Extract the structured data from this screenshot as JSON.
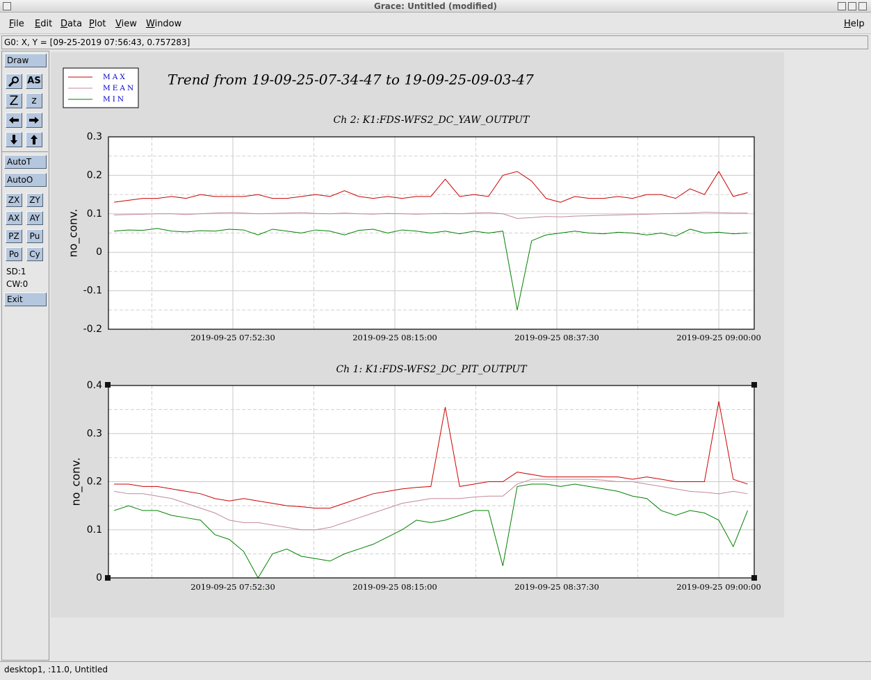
{
  "window": {
    "title": "Grace: Untitled (modified)"
  },
  "menu": [
    "File",
    "Edit",
    "Data",
    "Plot",
    "View",
    "Window"
  ],
  "help": "Help",
  "locator": "G0: X, Y = [09-25-2019 07:56:43, 0.757283]",
  "toolbar": {
    "draw": "Draw",
    "icons": [
      "AS",
      "Z",
      "z"
    ],
    "auto": [
      "AutoT",
      "AutoO"
    ],
    "buttons": [
      "ZX",
      "ZY",
      "AX",
      "AY",
      "PZ",
      "Pu",
      "Po",
      "Cy"
    ],
    "status": [
      "SD:1",
      "CW:0"
    ],
    "exit": "Exit"
  },
  "plot_title": "Trend from 19-09-25-07-34-47 to 19-09-25-09-03-47",
  "statusbar": "desktop1, :11.0, Untitled",
  "chart_data": [
    {
      "type": "line",
      "title": "Ch 2: K1:FDS-WFS2_DC_YAW_OUTPUT",
      "y_label": "no_conv.",
      "x": [
        "2019-09-25 07:36:00",
        "2019-09-25 07:38:00",
        "2019-09-25 07:40:00",
        "2019-09-25 07:42:00",
        "2019-09-25 07:44:00",
        "2019-09-25 07:46:00",
        "2019-09-25 07:48:00",
        "2019-09-25 07:50:00",
        "2019-09-25 07:52:00",
        "2019-09-25 07:54:00",
        "2019-09-25 07:56:00",
        "2019-09-25 07:58:00",
        "2019-09-25 08:00:00",
        "2019-09-25 08:02:00",
        "2019-09-25 08:04:00",
        "2019-09-25 08:06:00",
        "2019-09-25 08:08:00",
        "2019-09-25 08:10:00",
        "2019-09-25 08:12:00",
        "2019-09-25 08:14:00",
        "2019-09-25 08:16:00",
        "2019-09-25 08:18:00",
        "2019-09-25 08:20:00",
        "2019-09-25 08:22:00",
        "2019-09-25 08:24:00",
        "2019-09-25 08:26:00",
        "2019-09-25 08:28:00",
        "2019-09-25 08:30:00",
        "2019-09-25 08:32:00",
        "2019-09-25 08:34:00",
        "2019-09-25 08:36:00",
        "2019-09-25 08:38:00",
        "2019-09-25 08:40:00",
        "2019-09-25 08:42:00",
        "2019-09-25 08:44:00",
        "2019-09-25 08:46:00",
        "2019-09-25 08:48:00",
        "2019-09-25 08:50:00",
        "2019-09-25 08:52:00",
        "2019-09-25 08:54:00",
        "2019-09-25 08:56:00",
        "2019-09-25 08:58:00",
        "2019-09-25 09:00:00",
        "2019-09-25 09:02:00",
        "2019-09-25 09:04:00"
      ],
      "xlim": [
        "2019-09-25 07:35:13",
        "2019-09-25 09:04:55"
      ],
      "xticks": [
        "2019-09-25 07:52:30",
        "2019-09-25 08:15:00",
        "2019-09-25 08:37:30",
        "2019-09-25 09:00:00"
      ],
      "ylim": [
        -0.2,
        0.3
      ],
      "yticks": [
        -0.2,
        -0.1,
        0,
        0.1,
        0.2,
        0.3
      ],
      "grid": true,
      "series": [
        {
          "name": "MAX",
          "color": "#cc0000",
          "values": [
            0.13,
            0.135,
            0.14,
            0.14,
            0.145,
            0.14,
            0.15,
            0.145,
            0.145,
            0.145,
            0.15,
            0.14,
            0.14,
            0.145,
            0.15,
            0.145,
            0.16,
            0.145,
            0.14,
            0.145,
            0.14,
            0.145,
            0.145,
            0.19,
            0.145,
            0.15,
            0.145,
            0.2,
            0.21,
            0.185,
            0.14,
            0.13,
            0.145,
            0.14,
            0.14,
            0.145,
            0.14,
            0.15,
            0.15,
            0.14,
            0.165,
            0.15,
            0.21,
            0.145,
            0.155
          ]
        },
        {
          "name": "MEAN",
          "color": "#c08898",
          "values": [
            0.097,
            0.098,
            0.099,
            0.1,
            0.1,
            0.098,
            0.1,
            0.102,
            0.103,
            0.102,
            0.1,
            0.101,
            0.102,
            0.103,
            0.101,
            0.1,
            0.102,
            0.1,
            0.099,
            0.101,
            0.1,
            0.099,
            0.1,
            0.101,
            0.1,
            0.102,
            0.103,
            0.1,
            0.088,
            0.09,
            0.093,
            0.092,
            0.094,
            0.095,
            0.096,
            0.097,
            0.098,
            0.099,
            0.1,
            0.101,
            0.102,
            0.104,
            0.103,
            0.102,
            0.102
          ]
        },
        {
          "name": "MIN",
          "color": "#008000",
          "values": [
            0.055,
            0.058,
            0.057,
            0.062,
            0.055,
            0.053,
            0.056,
            0.055,
            0.06,
            0.058,
            0.045,
            0.06,
            0.055,
            0.05,
            0.058,
            0.055,
            0.045,
            0.057,
            0.06,
            0.05,
            0.058,
            0.055,
            0.05,
            0.055,
            0.048,
            0.055,
            0.05,
            0.055,
            -0.15,
            0.03,
            0.045,
            0.05,
            0.055,
            0.05,
            0.048,
            0.052,
            0.05,
            0.045,
            0.05,
            0.042,
            0.06,
            0.05,
            0.052,
            0.048,
            0.05
          ]
        }
      ]
    },
    {
      "type": "line",
      "title": "Ch 1: K1:FDS-WFS2_DC_PIT_OUTPUT",
      "y_label": "no_conv.",
      "x": [
        "2019-09-25 07:36:00",
        "2019-09-25 07:38:00",
        "2019-09-25 07:40:00",
        "2019-09-25 07:42:00",
        "2019-09-25 07:44:00",
        "2019-09-25 07:46:00",
        "2019-09-25 07:48:00",
        "2019-09-25 07:50:00",
        "2019-09-25 07:52:00",
        "2019-09-25 07:54:00",
        "2019-09-25 07:56:00",
        "2019-09-25 07:58:00",
        "2019-09-25 08:00:00",
        "2019-09-25 08:02:00",
        "2019-09-25 08:04:00",
        "2019-09-25 08:06:00",
        "2019-09-25 08:08:00",
        "2019-09-25 08:10:00",
        "2019-09-25 08:12:00",
        "2019-09-25 08:14:00",
        "2019-09-25 08:16:00",
        "2019-09-25 08:18:00",
        "2019-09-25 08:20:00",
        "2019-09-25 08:22:00",
        "2019-09-25 08:24:00",
        "2019-09-25 08:26:00",
        "2019-09-25 08:28:00",
        "2019-09-25 08:30:00",
        "2019-09-25 08:32:00",
        "2019-09-25 08:34:00",
        "2019-09-25 08:36:00",
        "2019-09-25 08:38:00",
        "2019-09-25 08:40:00",
        "2019-09-25 08:42:00",
        "2019-09-25 08:44:00",
        "2019-09-25 08:46:00",
        "2019-09-25 08:48:00",
        "2019-09-25 08:50:00",
        "2019-09-25 08:52:00",
        "2019-09-25 08:54:00",
        "2019-09-25 08:56:00",
        "2019-09-25 08:58:00",
        "2019-09-25 09:00:00",
        "2019-09-25 09:02:00",
        "2019-09-25 09:04:00"
      ],
      "xlim": [
        "2019-09-25 07:35:13",
        "2019-09-25 09:04:55"
      ],
      "xticks": [
        "2019-09-25 07:52:30",
        "2019-09-25 08:15:00",
        "2019-09-25 08:37:30",
        "2019-09-25 09:00:00"
      ],
      "ylim": [
        0,
        0.4
      ],
      "yticks": [
        0,
        0.1,
        0.2,
        0.3,
        0.4
      ],
      "grid": true,
      "series": [
        {
          "color": "#cc0000",
          "values": [
            0.195,
            0.195,
            0.19,
            0.19,
            0.185,
            0.18,
            0.175,
            0.165,
            0.16,
            0.165,
            0.16,
            0.155,
            0.15,
            0.148,
            0.145,
            0.145,
            0.155,
            0.165,
            0.175,
            0.18,
            0.185,
            0.188,
            0.19,
            0.355,
            0.19,
            0.195,
            0.2,
            0.2,
            0.22,
            0.215,
            0.21,
            0.21,
            0.21,
            0.21,
            0.21,
            0.21,
            0.205,
            0.21,
            0.205,
            0.2,
            0.2,
            0.2,
            0.367,
            0.205,
            0.195
          ]
        },
        {
          "color": "#c08898",
          "values": [
            0.18,
            0.175,
            0.175,
            0.17,
            0.165,
            0.155,
            0.145,
            0.135,
            0.12,
            0.115,
            0.115,
            0.11,
            0.105,
            0.1,
            0.1,
            0.105,
            0.115,
            0.125,
            0.135,
            0.145,
            0.155,
            0.16,
            0.165,
            0.165,
            0.165,
            0.168,
            0.17,
            0.17,
            0.195,
            0.205,
            0.205,
            0.205,
            0.205,
            0.205,
            0.203,
            0.2,
            0.2,
            0.195,
            0.19,
            0.185,
            0.18,
            0.178,
            0.175,
            0.18,
            0.175
          ]
        },
        {
          "color": "#008000",
          "values": [
            0.14,
            0.15,
            0.14,
            0.14,
            0.13,
            0.125,
            0.12,
            0.09,
            0.08,
            0.055,
            0,
            0.05,
            0.06,
            0.045,
            0.04,
            0.035,
            0.05,
            0.06,
            0.07,
            0.085,
            0.1,
            0.12,
            0.115,
            0.12,
            0.13,
            0.14,
            0.14,
            0.025,
            0.19,
            0.195,
            0.195,
            0.19,
            0.195,
            0.19,
            0.185,
            0.18,
            0.17,
            0.165,
            0.14,
            0.13,
            0.14,
            0.135,
            0.12,
            0.065,
            0.14
          ]
        }
      ]
    }
  ]
}
